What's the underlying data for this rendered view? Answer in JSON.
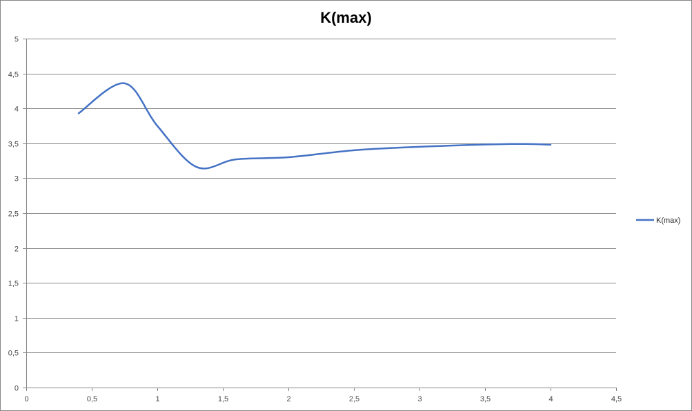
{
  "chart_data": {
    "type": "line",
    "title": "K(max)",
    "xlabel": "",
    "ylabel": "",
    "xlim": [
      0,
      4.5
    ],
    "ylim": [
      0,
      5
    ],
    "xticks": [
      "0",
      "0,5",
      "1",
      "1,5",
      "2",
      "2,5",
      "3",
      "3,5",
      "4",
      "4,5"
    ],
    "yticks": [
      "0",
      "0,5",
      "1",
      "1,5",
      "2",
      "2,5",
      "3",
      "3,5",
      "4",
      "4,5",
      "5"
    ],
    "grid": true,
    "smooth": true,
    "legend_position": "right",
    "series": [
      {
        "name": "K(max)",
        "color": "#4472c4",
        "x": [
          0.4,
          0.75,
          1.0,
          1.3,
          1.6,
          2.0,
          2.5,
          3.0,
          3.7,
          4.0
        ],
        "y": [
          3.93,
          4.36,
          3.75,
          3.16,
          3.27,
          3.3,
          3.4,
          3.45,
          3.49,
          3.48
        ]
      }
    ]
  }
}
